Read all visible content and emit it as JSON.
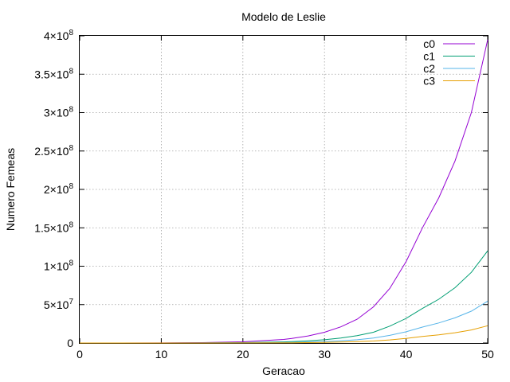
{
  "chart_data": {
    "type": "line",
    "title": "Modelo de Leslie",
    "xlabel": "Geracao",
    "ylabel": "Numero Femeas",
    "xlim": [
      0,
      50
    ],
    "ylim": [
      0,
      400000000
    ],
    "grid": true,
    "legend_position": "top-right",
    "x_ticks": [
      0,
      10,
      20,
      30,
      40,
      50
    ],
    "x_tick_labels": [
      "0",
      "10",
      "20",
      "30",
      "40",
      "50"
    ],
    "y_ticks": [
      0,
      50000000,
      100000000,
      150000000,
      200000000,
      250000000,
      300000000,
      350000000,
      400000000
    ],
    "y_tick_labels": [
      {
        "mant": "0",
        "exp": ""
      },
      {
        "mant": "5×10",
        "exp": "7"
      },
      {
        "mant": "1×10",
        "exp": "8"
      },
      {
        "mant": "1.5×10",
        "exp": "8"
      },
      {
        "mant": "2×10",
        "exp": "8"
      },
      {
        "mant": "2.5×10",
        "exp": "8"
      },
      {
        "mant": "3×10",
        "exp": "8"
      },
      {
        "mant": "3.5×10",
        "exp": "8"
      },
      {
        "mant": "4×10",
        "exp": "8"
      }
    ],
    "x": [
      0,
      5,
      10,
      15,
      20,
      25,
      26,
      28,
      30,
      32,
      34,
      36,
      38,
      40,
      42,
      44,
      46,
      48,
      50
    ],
    "series": [
      {
        "name": "c0",
        "color": "#9400d3",
        "values": [
          0,
          20000,
          120000,
          480000,
          1600000,
          4700000,
          5900000,
          9200000,
          14000000,
          21000000,
          31000000,
          47000000,
          71000000,
          106000000,
          150000000,
          189000000,
          237000000,
          300000000,
          395000000
        ]
      },
      {
        "name": "c1",
        "color": "#009e73",
        "values": [
          0,
          6000,
          36000,
          145000,
          480000,
          1400000,
          1800000,
          2800000,
          4200000,
          6400000,
          9500000,
          14000000,
          22000000,
          32000000,
          45000000,
          57000000,
          72000000,
          92000000,
          120000000
        ]
      },
      {
        "name": "c2",
        "color": "#56b4e9",
        "values": [
          0,
          3000,
          17000,
          66000,
          220000,
          650000,
          820000,
          1270000,
          1900000,
          2900000,
          4300000,
          6500000,
          9900000,
          14600000,
          20700000,
          26100000,
          32700000,
          41400000,
          54500000
        ]
      },
      {
        "name": "c3",
        "color": "#e69f00",
        "values": [
          0,
          1000,
          7000,
          27000,
          90000,
          260000,
          330000,
          510000,
          800000,
          1200000,
          1800000,
          2600000,
          4000000,
          6000000,
          8500000,
          10700000,
          13400000,
          17000000,
          22500000
        ]
      }
    ]
  }
}
